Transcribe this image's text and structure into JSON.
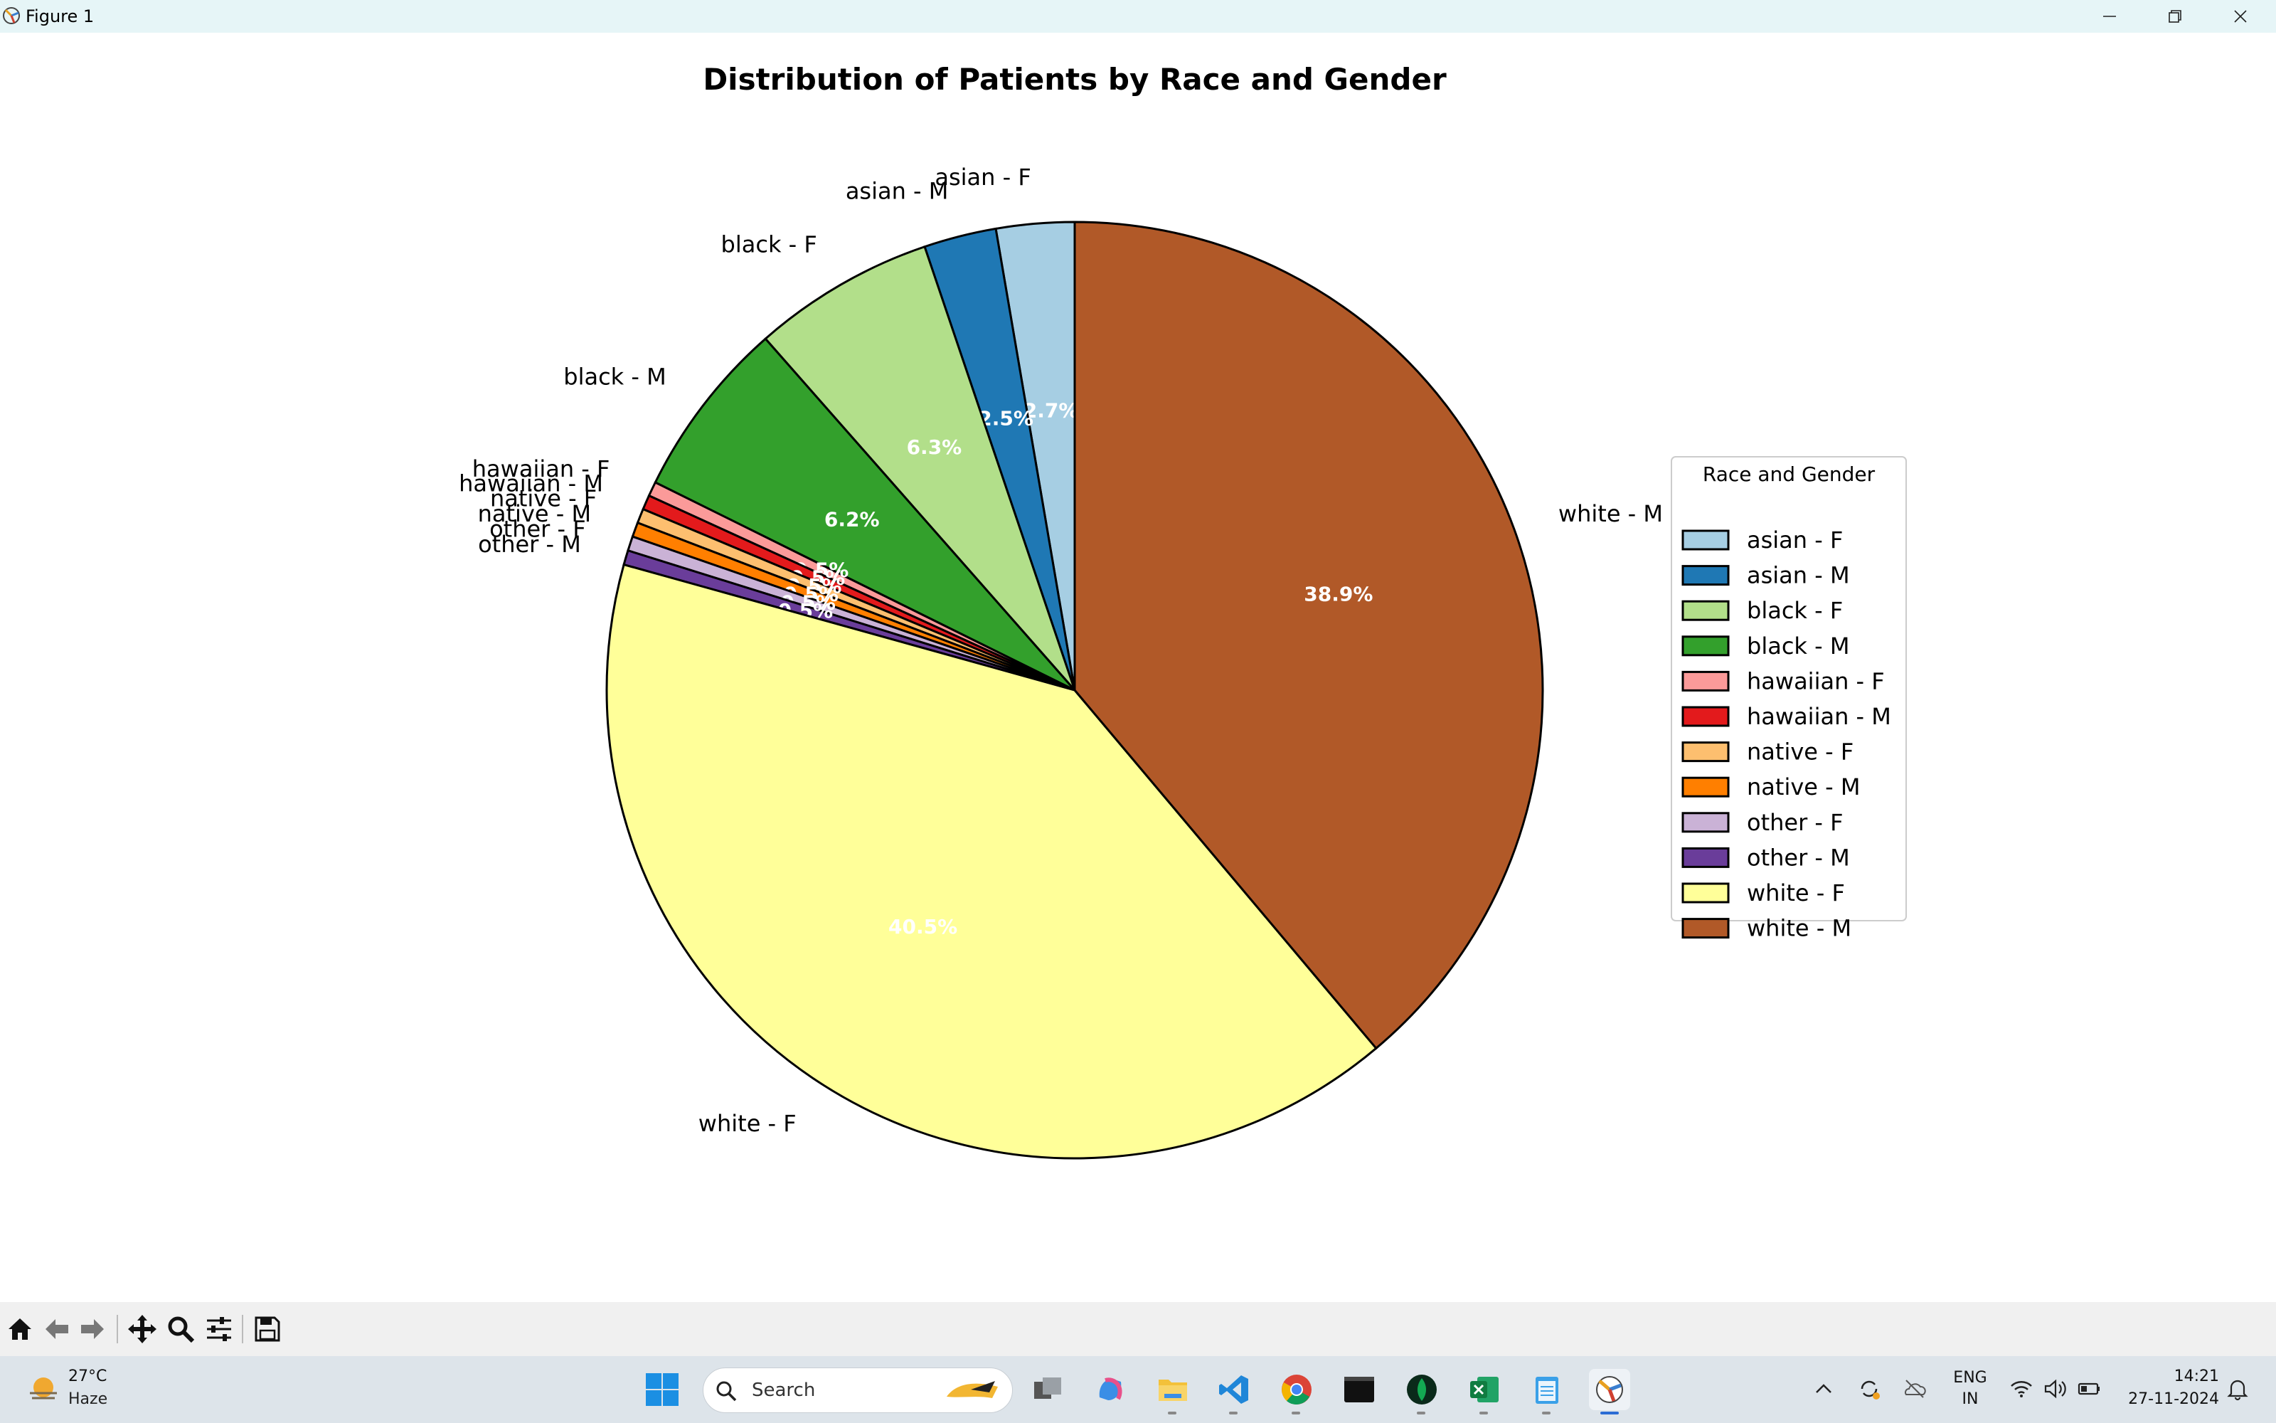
{
  "window": {
    "title": "Figure 1",
    "icons": [
      "app-icon",
      "minimize-icon",
      "maximize-icon",
      "close-icon"
    ]
  },
  "chart_data": {
    "type": "pie",
    "title": "Distribution of Patients by Race and Gender",
    "legend": {
      "title": "Race and Gender",
      "placement": "right"
    },
    "slices": [
      {
        "label": "asian - F",
        "value": 2.7,
        "text": "2.7%",
        "color": "#a6cee3"
      },
      {
        "label": "asian - M",
        "value": 2.5,
        "text": "2.5%",
        "color": "#1f78b4"
      },
      {
        "label": "black - F",
        "value": 6.3,
        "text": "6.3%",
        "color": "#b2df8a"
      },
      {
        "label": "black - M",
        "value": 6.2,
        "text": "6.2%",
        "color": "#33a02c"
      },
      {
        "label": "hawaiian - F",
        "value": 0.5,
        "text": "0.5%",
        "color": "#fb9a99"
      },
      {
        "label": "hawaiian - M",
        "value": 0.5,
        "text": "0.5%",
        "color": "#e31a1c"
      },
      {
        "label": "native - F",
        "value": 0.5,
        "text": "0.5%",
        "color": "#fdbf6f"
      },
      {
        "label": "native - M",
        "value": 0.5,
        "text": "0.5%",
        "color": "#ff7f00"
      },
      {
        "label": "other - F",
        "value": 0.5,
        "text": "0.5%",
        "color": "#cab2d6"
      },
      {
        "label": "other - M",
        "value": 0.5,
        "text": "0.5%",
        "color": "#6a3d9a"
      },
      {
        "label": "white - F",
        "value": 40.5,
        "text": "40.5%",
        "color": "#ffff99"
      },
      {
        "label": "white - M",
        "value": 38.9,
        "text": "38.9%",
        "color": "#b15928"
      }
    ],
    "start_angle_deg": 90,
    "direction": "counterclockwise"
  },
  "toolbar": {
    "tools": [
      "home-icon",
      "back-icon",
      "forward-icon",
      "pan-icon",
      "zoom-icon",
      "configure-icon",
      "save-icon"
    ]
  },
  "taskbar": {
    "weather_temp": "27°C",
    "weather_desc": "Haze",
    "search_label": "Search",
    "lang_line1": "ENG",
    "lang_line2": "IN",
    "time": "14:21",
    "date": "27-11-2024"
  }
}
